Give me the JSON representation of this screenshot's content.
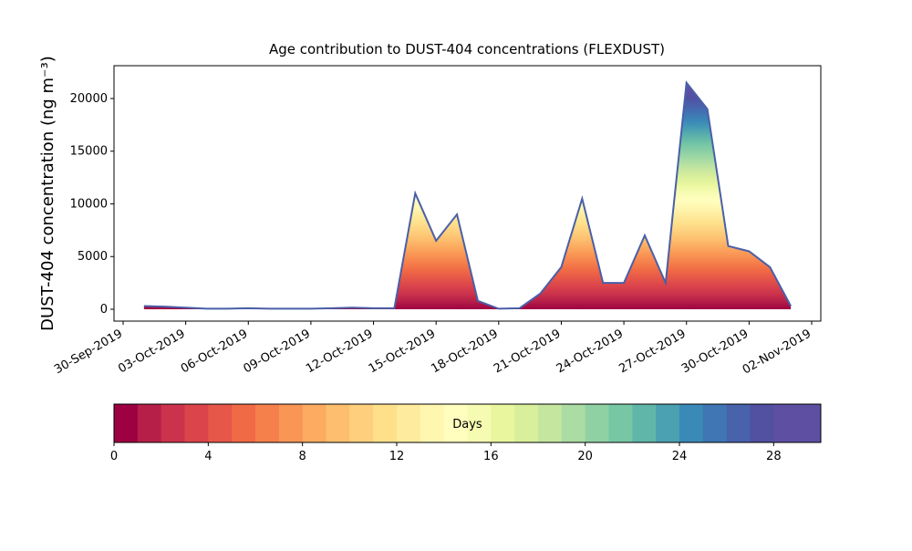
{
  "chart_data": {
    "type": "area",
    "title": "Age contribution to DUST-404 concentrations (FLEXDUST)",
    "y_label": "DUST-404 concentration (ng m⁻³)",
    "x": [
      "2019-10-01",
      "2019-10-02",
      "2019-10-03",
      "2019-10-04",
      "2019-10-05",
      "2019-10-06",
      "2019-10-07",
      "2019-10-08",
      "2019-10-09",
      "2019-10-10",
      "2019-10-11",
      "2019-10-12",
      "2019-10-13",
      "2019-10-14",
      "2019-10-15",
      "2019-10-16",
      "2019-10-17",
      "2019-10-18",
      "2019-10-19",
      "2019-10-20",
      "2019-10-21",
      "2019-10-22",
      "2019-10-23",
      "2019-10-24",
      "2019-10-25",
      "2019-10-26",
      "2019-10-27",
      "2019-10-28",
      "2019-10-29",
      "2019-10-30",
      "2019-10-31",
      "2019-11-01"
    ],
    "values": [
      300,
      250,
      150,
      50,
      50,
      100,
      50,
      50,
      50,
      100,
      150,
      100,
      100,
      11000,
      6500,
      9000,
      800,
      50,
      100,
      1500,
      4000,
      10500,
      2500,
      2500,
      7000,
      2500,
      21500,
      19000,
      6000,
      5500,
      4000,
      300
    ],
    "line_color": "#4a5fa8",
    "xlim": [
      "2019-09-30",
      "2019-11-02"
    ],
    "xticks": [
      {
        "value": "2019-09-30",
        "label": "30-Sep-2019"
      },
      {
        "value": "2019-10-03",
        "label": "03-Oct-2019"
      },
      {
        "value": "2019-10-06",
        "label": "06-Oct-2019"
      },
      {
        "value": "2019-10-09",
        "label": "09-Oct-2019"
      },
      {
        "value": "2019-10-12",
        "label": "12-Oct-2019"
      },
      {
        "value": "2019-10-15",
        "label": "15-Oct-2019"
      },
      {
        "value": "2019-10-18",
        "label": "18-Oct-2019"
      },
      {
        "value": "2019-10-21",
        "label": "21-Oct-2019"
      },
      {
        "value": "2019-10-24",
        "label": "24-Oct-2019"
      },
      {
        "value": "2019-10-27",
        "label": "27-Oct-2019"
      },
      {
        "value": "2019-10-30",
        "label": "30-Oct-2019"
      },
      {
        "value": "2019-11-02",
        "label": "02-Nov-2019"
      }
    ],
    "ylim": [
      -1126,
      23117
    ],
    "yticks": [
      0,
      5000,
      10000,
      15000,
      20000
    ],
    "colorbar": {
      "label": "Days",
      "lim": [
        0,
        30
      ],
      "ticks": [
        0,
        4,
        8,
        12,
        16,
        20,
        24,
        28
      ],
      "colors": [
        "#9e0142",
        "#b51f48",
        "#cb334c",
        "#db444b",
        "#e65749",
        "#f06a45",
        "#f6804c",
        "#f99555",
        "#fcab61",
        "#fdbf6f",
        "#fed07e",
        "#fee08b",
        "#feeb9d",
        "#fff6b0",
        "#fffebe",
        "#f5fbb0",
        "#e9f69e",
        "#d9ef9b",
        "#c4e69f",
        "#aadca4",
        "#90d1a4",
        "#77c7a5",
        "#60b6a9",
        "#4ba0b1",
        "#3a8ab8",
        "#3f76b3",
        "#4862ab",
        "#5150a1",
        "#5e4fa2",
        "#5e4fa2"
      ]
    }
  }
}
